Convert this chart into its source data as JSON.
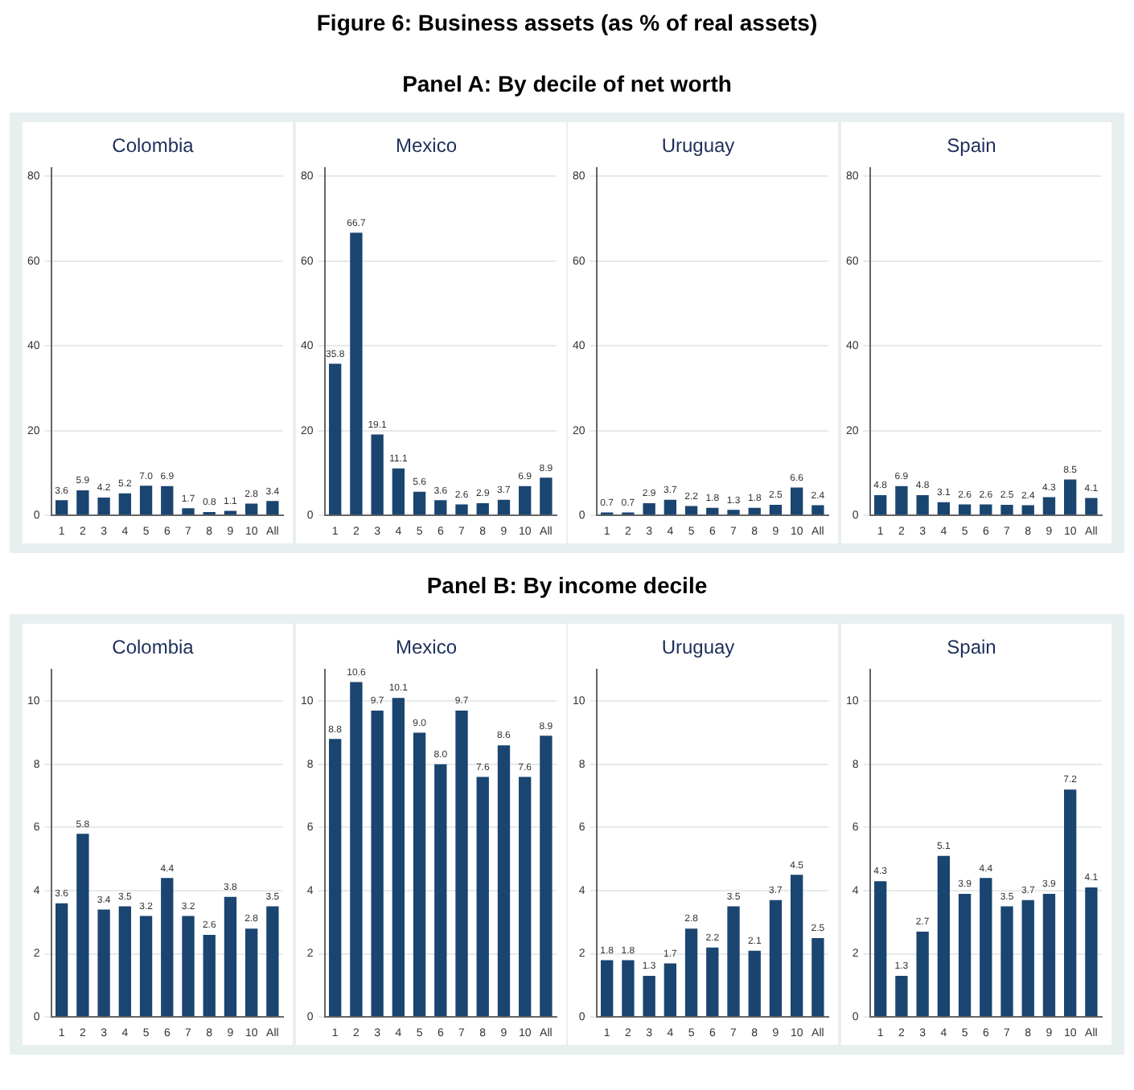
{
  "chart_data": [
    {
      "type": "bar",
      "title": "Colombia",
      "annotations": [
        "Figure 6: Business assets (as % of real assets)",
        "Panel A: By decile of net worth"
      ],
      "categories": [
        "1",
        "2",
        "3",
        "4",
        "5",
        "6",
        "7",
        "8",
        "9",
        "10",
        "All"
      ],
      "values": [
        3.6,
        5.9,
        4.2,
        5.2,
        7.0,
        6.9,
        1.7,
        0.8,
        1.1,
        2.8,
        3.4
      ],
      "value_labels": [
        "3.6",
        "5.9",
        "4.2",
        "5.2",
        "7.0",
        "6.9",
        "1.7",
        "0.8",
        "1.1",
        "2.8",
        "3.4"
      ],
      "color": "#1a4570",
      "ylim": [
        0,
        82
      ],
      "yticks": [
        0,
        20,
        40,
        60,
        80
      ],
      "grid": "y"
    },
    {
      "type": "bar",
      "title": "Mexico",
      "categories": [
        "1",
        "2",
        "3",
        "4",
        "5",
        "6",
        "7",
        "8",
        "9",
        "10",
        "All"
      ],
      "values": [
        35.8,
        66.7,
        19.1,
        11.1,
        5.6,
        3.6,
        2.6,
        2.9,
        3.7,
        6.9,
        8.9
      ],
      "value_labels": [
        "35.8",
        "66.7",
        "19.1",
        "11.1",
        "5.6",
        "3.6",
        "2.6",
        "2.9",
        "3.7",
        "6.9",
        "8.9"
      ],
      "color": "#1a4570",
      "ylim": [
        0,
        82
      ],
      "yticks": [
        0,
        20,
        40,
        60,
        80
      ],
      "grid": "y"
    },
    {
      "type": "bar",
      "title": "Uruguay",
      "categories": [
        "1",
        "2",
        "3",
        "4",
        "5",
        "6",
        "7",
        "8",
        "9",
        "10",
        "All"
      ],
      "values": [
        0.7,
        0.7,
        2.9,
        3.7,
        2.2,
        1.8,
        1.3,
        1.8,
        2.5,
        6.6,
        2.4
      ],
      "value_labels": [
        "0.7",
        "0.7",
        "2.9",
        "3.7",
        "2.2",
        "1.8",
        "1.3",
        "1.8",
        "2.5",
        "6.6",
        "2.4"
      ],
      "color": "#1a4570",
      "ylim": [
        0,
        82
      ],
      "yticks": [
        0,
        20,
        40,
        60,
        80
      ],
      "grid": "y"
    },
    {
      "type": "bar",
      "title": "Spain",
      "categories": [
        "1",
        "2",
        "3",
        "4",
        "5",
        "6",
        "7",
        "8",
        "9",
        "10",
        "All"
      ],
      "values": [
        4.8,
        6.9,
        4.8,
        3.1,
        2.6,
        2.6,
        2.5,
        2.4,
        4.3,
        8.5,
        4.1
      ],
      "value_labels": [
        "4.8",
        "6.9",
        "4.8",
        "3.1",
        "2.6",
        "2.6",
        "2.5",
        "2.4",
        "4.3",
        "8.5",
        "4.1"
      ],
      "color": "#1a4570",
      "ylim": [
        0,
        82
      ],
      "yticks": [
        0,
        20,
        40,
        60,
        80
      ],
      "grid": "y"
    },
    {
      "type": "bar",
      "title": "Colombia",
      "annotations": [
        "Panel B: By income decile"
      ],
      "categories": [
        "1",
        "2",
        "3",
        "4",
        "5",
        "6",
        "7",
        "8",
        "9",
        "10",
        "All"
      ],
      "values": [
        3.6,
        5.8,
        3.4,
        3.5,
        3.2,
        4.4,
        3.2,
        2.6,
        3.8,
        2.8,
        3.5
      ],
      "value_labels": [
        "3.6",
        "5.8",
        "3.4",
        "3.5",
        "3.2",
        "4.4",
        "3.2",
        "2.6",
        "3.8",
        "2.8",
        "3.5"
      ],
      "color": "#1a4570",
      "ylim": [
        0,
        11
      ],
      "yticks": [
        0,
        2,
        4,
        6,
        8,
        10
      ],
      "grid": "y"
    },
    {
      "type": "bar",
      "title": "Mexico",
      "categories": [
        "1",
        "2",
        "3",
        "4",
        "5",
        "6",
        "7",
        "8",
        "9",
        "10",
        "All"
      ],
      "values": [
        8.8,
        10.6,
        9.7,
        10.1,
        9.0,
        8.0,
        9.7,
        7.6,
        8.6,
        7.6,
        8.9
      ],
      "value_labels": [
        "8.8",
        "10.6",
        "9.7",
        "10.1",
        "9.0",
        "8.0",
        "9.7",
        "7.6",
        "8.6",
        "7.6",
        "8.9"
      ],
      "color": "#1a4570",
      "ylim": [
        0,
        11
      ],
      "yticks": [
        0,
        2,
        4,
        6,
        8,
        10
      ],
      "grid": "y"
    },
    {
      "type": "bar",
      "title": "Uruguay",
      "categories": [
        "1",
        "2",
        "3",
        "4",
        "5",
        "6",
        "7",
        "8",
        "9",
        "10",
        "All"
      ],
      "values": [
        1.8,
        1.8,
        1.3,
        1.7,
        2.8,
        2.2,
        3.5,
        2.1,
        3.7,
        4.5,
        2.5
      ],
      "value_labels": [
        "1.8",
        "1.8",
        "1.3",
        "1.7",
        "2.8",
        "2.2",
        "3.5",
        "2.1",
        "3.7",
        "4.5",
        "2.5"
      ],
      "color": "#1a4570",
      "ylim": [
        0,
        11
      ],
      "yticks": [
        0,
        2,
        4,
        6,
        8,
        10
      ],
      "grid": "y"
    },
    {
      "type": "bar",
      "title": "Spain",
      "categories": [
        "1",
        "2",
        "3",
        "4",
        "5",
        "6",
        "7",
        "8",
        "9",
        "10",
        "All"
      ],
      "values": [
        4.3,
        1.3,
        2.7,
        5.1,
        3.9,
        4.4,
        3.5,
        3.7,
        3.9,
        7.2,
        4.1
      ],
      "value_labels": [
        "4.3",
        "1.3",
        "2.7",
        "5.1",
        "3.9",
        "4.4",
        "3.5",
        "3.7",
        "3.9",
        "7.2",
        "4.1"
      ],
      "color": "#1a4570",
      "ylim": [
        0,
        11
      ],
      "yticks": [
        0,
        2,
        4,
        6,
        8,
        10
      ],
      "grid": "y"
    }
  ]
}
